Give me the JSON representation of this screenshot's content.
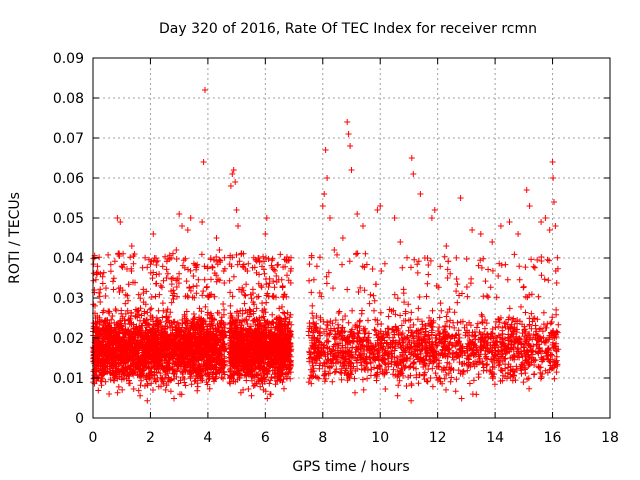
{
  "chart_data": {
    "type": "scatter",
    "title": "Day 320 of 2016, Rate Of TEC Index for receiver rcmn",
    "xlabel": "GPS time / hours",
    "ylabel": "ROTI / TECUs",
    "xlim": [
      0,
      18
    ],
    "ylim": [
      0,
      0.09
    ],
    "x_ticks": [
      "0",
      "2",
      "4",
      "6",
      "8",
      "10",
      "12",
      "14",
      "16",
      "18"
    ],
    "y_ticks": [
      "0",
      "0.01",
      "0.02",
      "0.03",
      "0.04",
      "0.05",
      "0.06",
      "0.07",
      "0.08",
      "0.09"
    ],
    "grid": true,
    "marker": "+",
    "marker_color": "#ff0000",
    "series": [
      {
        "name": "ROTI",
        "data_ranges_hours": [
          [
            0.0,
            4.6
          ],
          [
            4.75,
            6.9
          ],
          [
            7.5,
            16.2
          ]
        ],
        "typical_range": [
          0.005,
          0.03
        ],
        "outliers": [
          [
            0.05,
            0.032
          ],
          [
            0.25,
            0.029
          ],
          [
            0.85,
            0.05
          ],
          [
            0.95,
            0.049
          ],
          [
            1.35,
            0.043
          ],
          [
            1.45,
            0.041
          ],
          [
            2.1,
            0.046
          ],
          [
            2.2,
            0.039
          ],
          [
            2.3,
            0.036
          ],
          [
            2.9,
            0.042
          ],
          [
            3.0,
            0.051
          ],
          [
            3.1,
            0.048
          ],
          [
            3.3,
            0.047
          ],
          [
            3.4,
            0.05
          ],
          [
            3.6,
            0.038
          ],
          [
            3.8,
            0.049
          ],
          [
            3.85,
            0.064
          ],
          [
            3.9,
            0.082
          ],
          [
            4.1,
            0.04
          ],
          [
            4.3,
            0.045
          ],
          [
            4.4,
            0.042
          ],
          [
            4.8,
            0.058
          ],
          [
            4.85,
            0.061
          ],
          [
            4.9,
            0.062
          ],
          [
            4.95,
            0.059
          ],
          [
            5.05,
            0.048
          ],
          [
            5.0,
            0.052
          ],
          [
            5.8,
            0.039
          ],
          [
            6.05,
            0.05
          ],
          [
            6.0,
            0.046
          ],
          [
            6.4,
            0.034
          ],
          [
            6.6,
            0.033
          ],
          [
            8.0,
            0.053
          ],
          [
            8.05,
            0.056
          ],
          [
            8.1,
            0.067
          ],
          [
            8.15,
            0.06
          ],
          [
            8.25,
            0.05
          ],
          [
            8.4,
            0.042
          ],
          [
            8.7,
            0.045
          ],
          [
            8.85,
            0.074
          ],
          [
            8.9,
            0.071
          ],
          [
            8.95,
            0.068
          ],
          [
            9.0,
            0.062
          ],
          [
            9.2,
            0.051
          ],
          [
            9.4,
            0.048
          ],
          [
            9.9,
            0.052
          ],
          [
            10.0,
            0.053
          ],
          [
            10.5,
            0.05
          ],
          [
            10.7,
            0.044
          ],
          [
            11.1,
            0.065
          ],
          [
            11.15,
            0.061
          ],
          [
            11.4,
            0.056
          ],
          [
            11.8,
            0.05
          ],
          [
            11.9,
            0.052
          ],
          [
            12.3,
            0.043
          ],
          [
            12.8,
            0.055
          ],
          [
            13.2,
            0.047
          ],
          [
            13.5,
            0.046
          ],
          [
            13.9,
            0.044
          ],
          [
            14.2,
            0.048
          ],
          [
            14.5,
            0.049
          ],
          [
            14.8,
            0.046
          ],
          [
            15.1,
            0.057
          ],
          [
            15.2,
            0.053
          ],
          [
            15.6,
            0.049
          ],
          [
            15.75,
            0.05
          ],
          [
            15.9,
            0.047
          ],
          [
            16.0,
            0.064
          ],
          [
            16.02,
            0.06
          ],
          [
            16.05,
            0.054
          ],
          [
            16.1,
            0.048
          ]
        ]
      }
    ]
  }
}
